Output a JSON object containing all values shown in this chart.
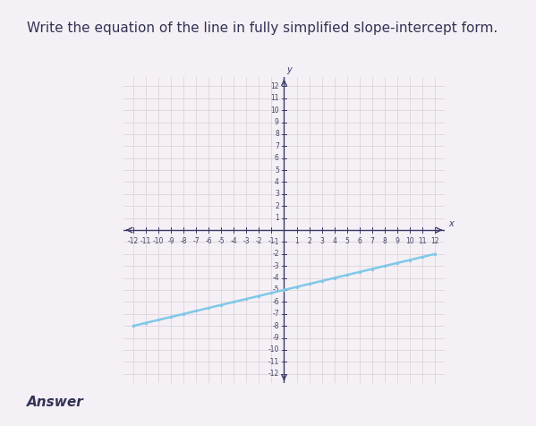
{
  "title": "Write the equation of the line in fully simplified slope-intercept form.",
  "title_fontsize": 11,
  "title_color": "#333355",
  "background_color": "#f5f0f5",
  "plot_bg_color": "#f0ecf0",
  "grid_color": "#d8d0d8",
  "axis_color": "#3a3a6a",
  "line_color": "#80c8e8",
  "line_x": [
    -12,
    12
  ],
  "line_y_func": {
    "slope": 0.25,
    "intercept": -5
  },
  "xlim": [
    -12.8,
    12.8
  ],
  "ylim": [
    -12.8,
    12.8
  ],
  "x_ticks": [
    -12,
    -11,
    -10,
    -9,
    -8,
    -7,
    -6,
    -5,
    -4,
    -3,
    -2,
    -1,
    1,
    2,
    3,
    4,
    5,
    6,
    7,
    8,
    9,
    10,
    11,
    12
  ],
  "y_ticks": [
    -12,
    -11,
    -10,
    -9,
    -8,
    -7,
    -6,
    -5,
    -4,
    -3,
    -2,
    -1,
    1,
    2,
    3,
    4,
    5,
    6,
    7,
    8,
    9,
    10,
    11,
    12
  ],
  "tick_fontsize": 5.5,
  "tick_color": "#444466",
  "answer_label": "Answer",
  "answer_fontsize": 11,
  "page_top_color": "#f8d8e0",
  "top_bar_height": 0.025
}
